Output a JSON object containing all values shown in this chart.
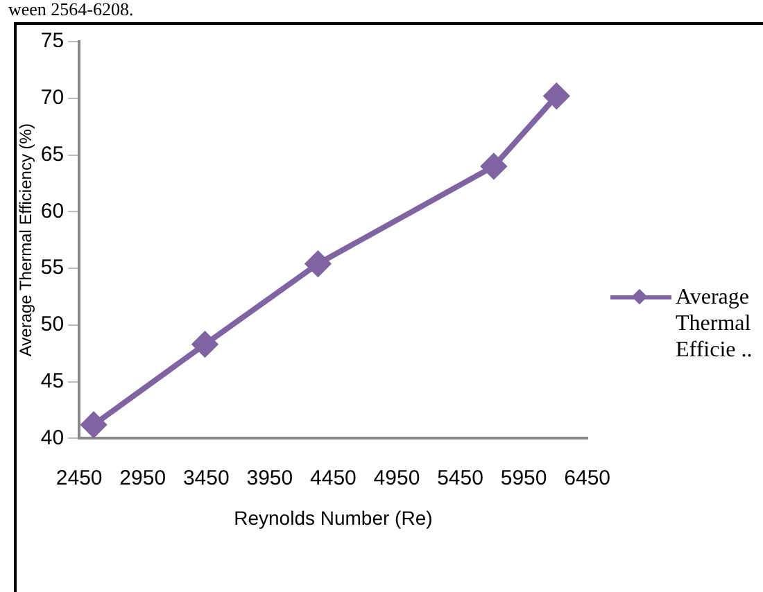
{
  "chart_data": {
    "type": "line",
    "xlabel": "Reynolds Number (Re)",
    "ylabel": "Average Thermal Efficiency (%)",
    "annotations": [
      "ween 2564-6208."
    ],
    "x": [
      2564,
      3440,
      4330,
      5714,
      6208
    ],
    "series": [
      {
        "name": "Average Thermal Efficie ..",
        "color": "#8064a2",
        "values": [
          41.2,
          48.3,
          55.4,
          64,
          70.2
        ]
      }
    ],
    "xlim": [
      2450,
      6450
    ],
    "xticks": [
      2450,
      2950,
      3450,
      3950,
      4450,
      4950,
      5450,
      5950,
      6450
    ],
    "ylim": [
      40,
      75
    ],
    "yticks": [
      40,
      45,
      50,
      55,
      60,
      65,
      70,
      75
    ],
    "grid": false,
    "legend": "right",
    "marker": "diamond",
    "line_style": "solid"
  }
}
